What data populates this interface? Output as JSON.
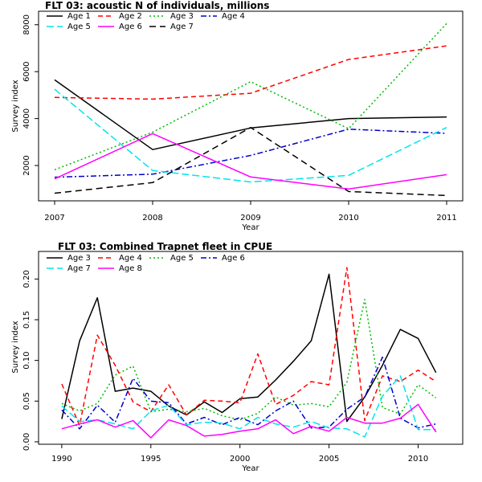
{
  "chart_data": [
    {
      "type": "line",
      "title": "FLT 03:   acoustic   N of individuals, millions",
      "xlabel": "Year",
      "ylabel": "Survey index",
      "xlim": [
        2007,
        2011
      ],
      "ylim": [
        700,
        8300
      ],
      "xticks": [
        2007,
        2008,
        2009,
        2010,
        2011
      ],
      "yticks": [
        2000,
        4000,
        6000,
        8000
      ],
      "legend_position": "top-left",
      "x": [
        2007,
        2008,
        2009,
        2010,
        2011
      ],
      "series": [
        {
          "name": "Age 1",
          "color": "#000000",
          "dash": "solid",
          "values": [
            5650,
            2680,
            3600,
            4000,
            4070
          ]
        },
        {
          "name": "Age 2",
          "color": "#ff0000",
          "dash": "dashed",
          "values": [
            4900,
            4830,
            5080,
            6520,
            7100
          ]
        },
        {
          "name": "Age 3",
          "color": "#00bb00",
          "dash": "dotted",
          "values": [
            1820,
            3420,
            5570,
            3570,
            8050
          ]
        },
        {
          "name": "Age 4",
          "color": "#0000cc",
          "dash": "dashdot",
          "values": [
            1500,
            1630,
            2430,
            3550,
            3370
          ]
        },
        {
          "name": "Age 5",
          "color": "#00e5ee",
          "dash": "longdash",
          "values": [
            5250,
            1790,
            1300,
            1580,
            3620
          ]
        },
        {
          "name": "Age 6",
          "color": "#ff00ff",
          "dash": "solid",
          "values": [
            1430,
            3360,
            1510,
            1000,
            1610
          ]
        },
        {
          "name": "Age 7",
          "color": "#000000",
          "dash": "longdash2",
          "values": [
            820,
            1270,
            3620,
            890,
            720
          ]
        }
      ]
    },
    {
      "type": "line",
      "title": "FLT 03: Combined Trapnet fleet in CPUE",
      "xlabel": "Year",
      "ylabel": "Survey index",
      "xlim": [
        1989.6,
        2011.6
      ],
      "ylim": [
        -0.003,
        0.225
      ],
      "xticks": [
        1990,
        1995,
        2000,
        2005,
        2010
      ],
      "yticks": [
        0.0,
        0.05,
        0.1,
        0.15,
        0.2
      ],
      "ytick_labels": [
        "0.00",
        "0.05",
        "0.10",
        "0.15",
        "0.20"
      ],
      "legend_position": "top-left",
      "x": [
        1990,
        1991,
        1992,
        1993,
        1994,
        1995,
        1996,
        1997,
        1998,
        1999,
        2000,
        2001,
        2002,
        2003,
        2004,
        2005,
        2006,
        2007,
        2008,
        2009,
        2010,
        2011
      ],
      "series": [
        {
          "name": "Age 3",
          "color": "#000000",
          "dash": "solid",
          "values": [
            0.028,
            0.124,
            0.177,
            0.062,
            0.066,
            0.062,
            0.044,
            0.033,
            0.049,
            0.036,
            0.053,
            0.055,
            0.076,
            0.099,
            0.124,
            0.206,
            0.025,
            0.055,
            0.094,
            0.138,
            0.127,
            0.085
          ]
        },
        {
          "name": "Age 4",
          "color": "#ff0000",
          "dash": "dashed",
          "values": [
            0.071,
            0.02,
            0.131,
            0.094,
            0.049,
            0.037,
            0.07,
            0.033,
            0.051,
            0.05,
            0.048,
            0.108,
            0.046,
            0.057,
            0.074,
            0.07,
            0.214,
            0.026,
            0.081,
            0.074,
            0.088,
            0.074
          ]
        },
        {
          "name": "Age 5",
          "color": "#00bb00",
          "dash": "dotted",
          "values": [
            0.047,
            0.038,
            0.047,
            0.082,
            0.093,
            0.037,
            0.04,
            0.037,
            0.041,
            0.032,
            0.027,
            0.035,
            0.055,
            0.045,
            0.047,
            0.043,
            0.073,
            0.175,
            0.042,
            0.034,
            0.07,
            0.054
          ]
        },
        {
          "name": "Age 6",
          "color": "#0000cc",
          "dash": "dashdot",
          "values": [
            0.039,
            0.016,
            0.045,
            0.024,
            0.078,
            0.05,
            0.048,
            0.022,
            0.03,
            0.021,
            0.03,
            0.021,
            0.038,
            0.05,
            0.017,
            0.018,
            0.04,
            0.055,
            0.104,
            0.029,
            0.017,
            0.022
          ]
        },
        {
          "name": "Age 7",
          "color": "#00e5ee",
          "dash": "longdash",
          "values": [
            0.044,
            0.025,
            0.027,
            0.022,
            0.016,
            0.038,
            0.045,
            0.021,
            0.024,
            0.023,
            0.016,
            0.03,
            0.022,
            0.018,
            0.025,
            0.017,
            0.016,
            0.006,
            0.056,
            0.081,
            0.015,
            0.015
          ]
        },
        {
          "name": "Age 8",
          "color": "#ff00ff",
          "dash": "solid",
          "values": [
            0.016,
            0.022,
            0.027,
            0.018,
            0.026,
            0.005,
            0.027,
            0.02,
            0.007,
            0.009,
            0.013,
            0.016,
            0.027,
            0.01,
            0.019,
            0.013,
            0.03,
            0.023,
            0.023,
            0.029,
            0.046,
            0.012
          ]
        }
      ]
    }
  ]
}
